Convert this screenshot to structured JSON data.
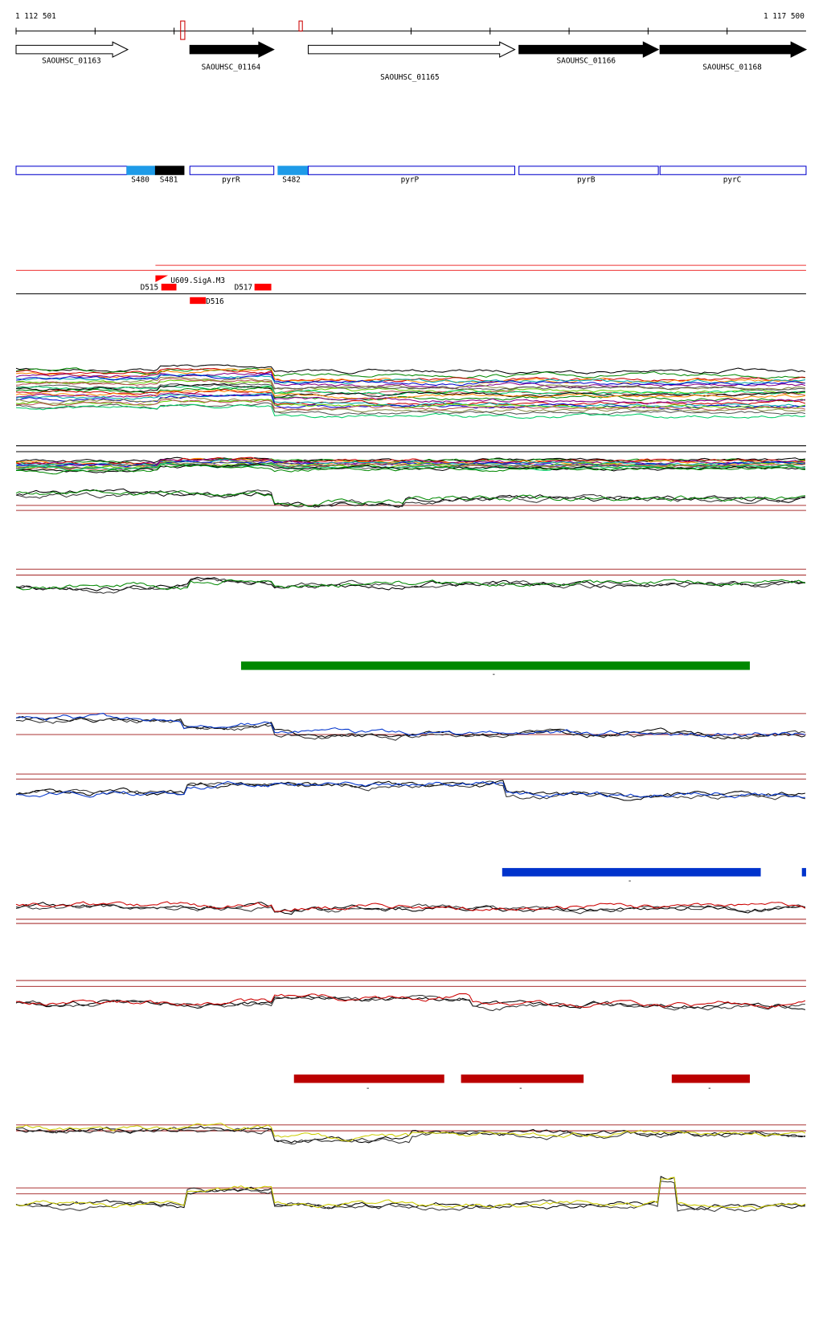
{
  "ruler": {
    "start": "1 112 501",
    "end": "1 117 500"
  },
  "genes": [
    "SAOUHSC_01163",
    "SAOUHSC_01164",
    "SAOUHSC_01165",
    "SAOUHSC_01166",
    "SAOUHSC_01168"
  ],
  "features": [
    "S480",
    "S481",
    "pyrR",
    "S482",
    "pyrP",
    "pyrB",
    "pyrC"
  ],
  "tss": [
    "U609.SigA.M3",
    "D515",
    "D516",
    "D517"
  ],
  "segment_labels": [
    "-",
    "-",
    "-",
    "-",
    "-"
  ]
}
